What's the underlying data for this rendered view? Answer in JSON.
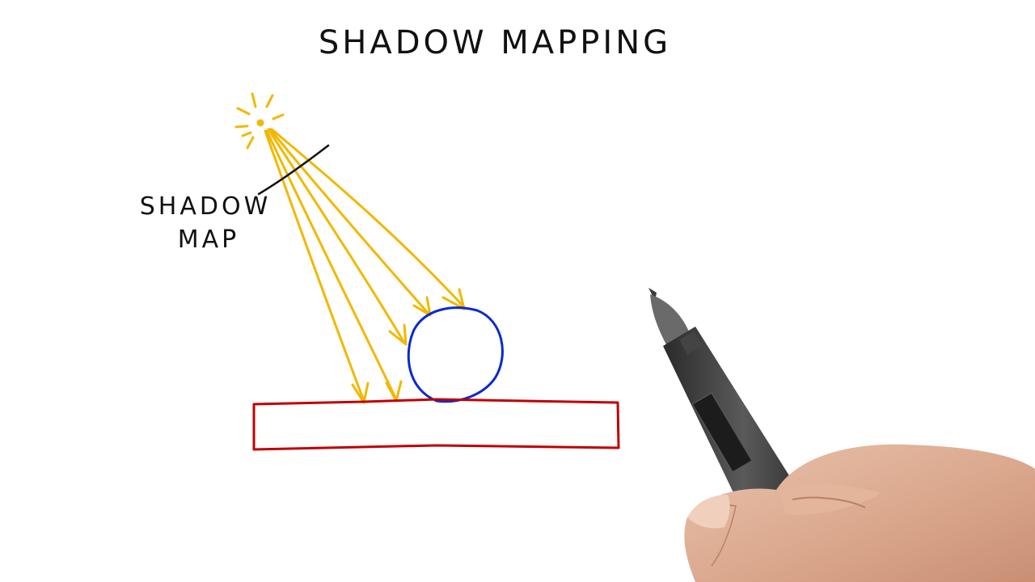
{
  "title": "SHADOW MAPPING",
  "labels": {
    "shadow_map_line1": "SHADOW",
    "shadow_map_line2": "MAP"
  },
  "colors": {
    "light_rays": "#f2b800",
    "sphere": "#0a2ad0",
    "ground": "#c00000",
    "ink": "#111111",
    "background": "#ffffff"
  },
  "elements": {
    "light": "sun-icon",
    "occluder": "sphere",
    "receiver": "ground-plane",
    "tool": "stylus-pen",
    "hand": "hand"
  }
}
